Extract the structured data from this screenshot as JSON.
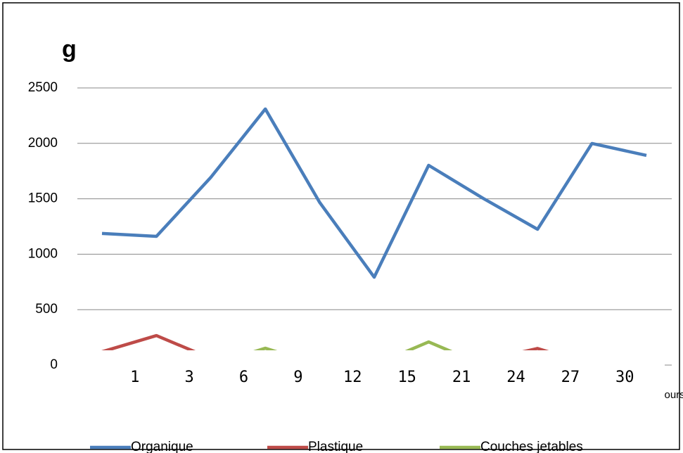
{
  "chart_data": {
    "type": "line",
    "y_label": "g",
    "x_label": "Jours",
    "categories": [
      null,
      "1",
      "3",
      "6",
      "9",
      "12",
      "15",
      "21",
      "24",
      "27",
      "30"
    ],
    "series": [
      {
        "name": "Organique",
        "color": "#4a7ebb",
        "values": [
          1187,
          1161,
          1694,
          2310,
          1466,
          793,
          1802,
          1504,
          1225,
          1999,
          1891
        ]
      },
      {
        "name": "Plastique",
        "color": "#be4b48",
        "values": [
          120,
          266,
          60,
          0,
          0,
          0,
          0,
          40,
          150,
          0,
          0
        ]
      },
      {
        "name": "Couches jetables",
        "color": "#98b954",
        "values": [
          0,
          0,
          0,
          152,
          0,
          0,
          209,
          0,
          0,
          0,
          0
        ]
      }
    ],
    "ylim": [
      0,
      2500
    ],
    "yticks": [
      0,
      500,
      1000,
      1500,
      2000,
      2500
    ],
    "grid": true,
    "legend": "bottom"
  }
}
